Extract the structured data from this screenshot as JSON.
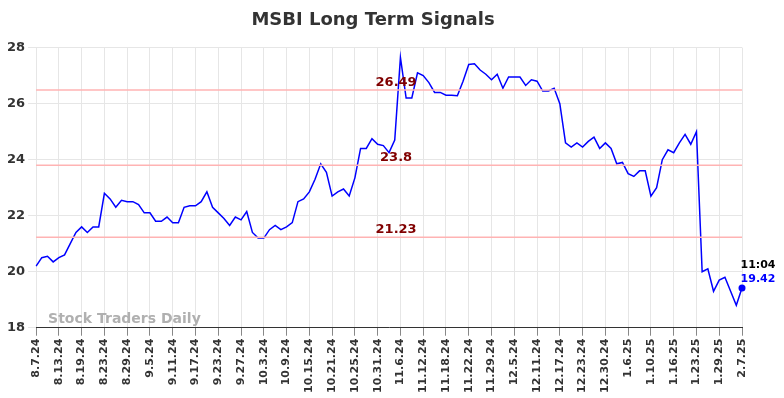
{
  "chart_data": {
    "type": "line",
    "title": "MSBI Long Term Signals",
    "categories": [
      "8.7.24",
      null,
      null,
      null,
      "8.13.24",
      null,
      null,
      null,
      "8.19.24",
      null,
      null,
      null,
      "8.23.24",
      null,
      null,
      null,
      "8.29.24",
      null,
      null,
      null,
      "9.5.24",
      null,
      null,
      null,
      "9.11.24",
      null,
      null,
      null,
      "9.17.24",
      null,
      null,
      null,
      "9.23.24",
      null,
      null,
      null,
      "9.27.24",
      null,
      null,
      null,
      "10.3.24",
      null,
      null,
      null,
      "10.9.24",
      null,
      null,
      null,
      "10.15.24",
      null,
      null,
      null,
      "10.21.24",
      null,
      null,
      null,
      "10.25.24",
      null,
      null,
      null,
      "10.31.24",
      null,
      null,
      null,
      "11.6.24",
      null,
      null,
      null,
      "11.12.24",
      null,
      null,
      null,
      "11.18.24",
      null,
      null,
      null,
      "11.22.24",
      null,
      null,
      null,
      "11.29.24",
      null,
      null,
      null,
      "12.5.24",
      null,
      null,
      null,
      "12.11.24",
      null,
      null,
      null,
      "12.17.24",
      null,
      null,
      null,
      "12.23.24",
      null,
      null,
      null,
      "12.30.24",
      null,
      null,
      null,
      "1.6.25",
      null,
      null,
      null,
      "1.10.25",
      null,
      null,
      null,
      "1.16.25",
      null,
      null,
      null,
      "1.23.25",
      null,
      null,
      null,
      "1.29.25",
      null,
      null,
      null,
      "2.7.25"
    ],
    "values": [
      20.2,
      20.5,
      20.55,
      20.35,
      20.5,
      20.6,
      21.0,
      21.4,
      21.6,
      21.4,
      21.6,
      21.6,
      22.8,
      22.6,
      22.3,
      22.55,
      22.5,
      22.5,
      22.4,
      22.1,
      22.1,
      21.8,
      21.8,
      21.95,
      21.75,
      21.75,
      22.3,
      22.35,
      22.35,
      22.5,
      22.85,
      22.3,
      22.1,
      21.9,
      21.65,
      21.95,
      21.85,
      22.15,
      21.4,
      21.2,
      21.2,
      21.5,
      21.65,
      21.5,
      21.6,
      21.75,
      22.5,
      22.6,
      22.85,
      23.3,
      23.85,
      23.55,
      22.7,
      22.85,
      22.95,
      22.7,
      23.35,
      24.4,
      24.4,
      24.75,
      24.55,
      24.5,
      24.25,
      24.7,
      27.65,
      26.2,
      26.2,
      27.1,
      27.0,
      26.75,
      26.4,
      26.4,
      26.3,
      26.3,
      26.28,
      26.8,
      27.4,
      27.42,
      27.2,
      27.05,
      26.85,
      27.05,
      26.55,
      26.95,
      26.95,
      26.95,
      26.65,
      26.85,
      26.8,
      26.45,
      26.45,
      26.55,
      26.0,
      24.6,
      24.45,
      24.6,
      24.45,
      24.65,
      24.8,
      24.4,
      24.6,
      24.4,
      23.85,
      23.9,
      23.5,
      23.4,
      23.6,
      23.6,
      22.7,
      23.0,
      24.0,
      24.35,
      24.25,
      24.6,
      24.9,
      24.55,
      25.0,
      20.0,
      20.1,
      19.3,
      19.7,
      19.8,
      19.3,
      18.8,
      19.42
    ],
    "color": "#0000ff",
    "ylim": [
      18,
      28
    ],
    "yticks": [
      18,
      20,
      22,
      24,
      26,
      28
    ],
    "grid": true,
    "signal_levels": [
      26.49,
      23.8,
      21.23
    ],
    "watermark": "Stock Traders Daily",
    "last_time": "11:04"
  }
}
